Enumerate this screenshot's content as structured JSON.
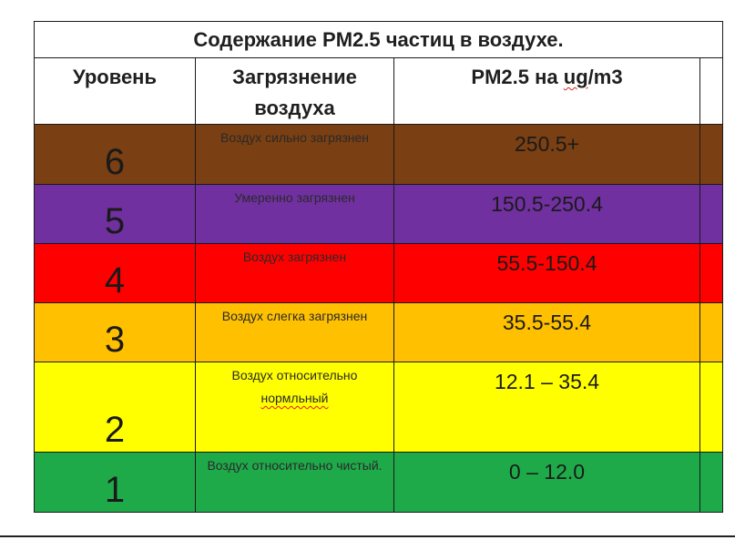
{
  "title": "Содержание PM2.5 частиц в воздухе.",
  "headers": {
    "level": "Уровень",
    "pollution": "Загрязнение воздуха",
    "pm_prefix": "PM2.5 на ",
    "pm_unit": "ug",
    "pm_suffix": "/m3"
  },
  "rows": [
    {
      "level": "6",
      "desc": "Воздух сильно загрязнен",
      "range": "250.5+",
      "color": "#7a3f12"
    },
    {
      "level": "5",
      "desc": "Умеренно загрязнен",
      "range": "150.5-250.4",
      "color": "#7030a0"
    },
    {
      "level": "4",
      "desc": "Воздух загрязнен",
      "range": "55.5-150.4",
      "color": "#ff0000"
    },
    {
      "level": "3",
      "desc": "Воздух слегка загрязнен",
      "range": "35.5-55.4",
      "color": "#ffc000"
    },
    {
      "level": "2",
      "desc_a": "Воздух относительно",
      "desc_b": "нормльный",
      "range": "12.1 – 35.4",
      "color": "#ffff00"
    },
    {
      "level": "1",
      "desc": "Воздух относительно чистый.",
      "range": "0 – 12.0",
      "color": "#1faa4a"
    }
  ]
}
